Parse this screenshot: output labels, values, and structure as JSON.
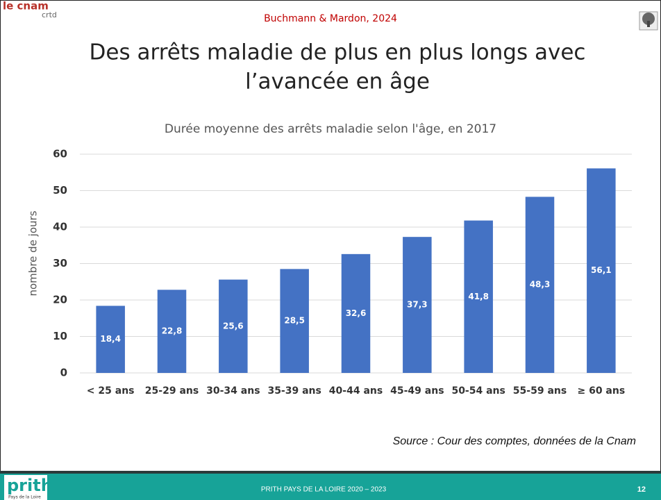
{
  "header": {
    "logo": "le cnam",
    "logo_sub": "crtd",
    "credit": "Buchmann & Mardon, 2024"
  },
  "slide_title": [
    "Des arrêts maladie de plus en plus longs avec",
    "l’avancée en âge"
  ],
  "chart_data": {
    "type": "bar",
    "title": "Durée moyenne des arrêts maladie selon l'âge, en 2017",
    "y_label": "nombre de jours",
    "categories": [
      "< 25 ans",
      "25-29 ans",
      "30-34 ans",
      "35-39 ans",
      "40-44 ans",
      "45-49 ans",
      "50-54 ans",
      "55-59 ans",
      "≥ 60 ans"
    ],
    "values": [
      18.4,
      22.8,
      25.6,
      28.5,
      32.6,
      37.3,
      41.8,
      48.3,
      56.1
    ],
    "value_labels": [
      "18,4",
      "22,8",
      "25,6",
      "28,5",
      "32,6",
      "37,3",
      "41,8",
      "48,3",
      "56,1"
    ],
    "color": "#4472c4",
    "ylim": [
      0,
      60
    ],
    "yticks": [
      0,
      10,
      20,
      30,
      40,
      50,
      60
    ],
    "grid": true
  },
  "source": "Source : Cour des comptes, données de la Cnam",
  "footer": {
    "logo": "prith",
    "logo_sub": "Pays de la Loire",
    "text": "PRITH PAYS DE LA LOIRE 2020 – 2023",
    "page": "12"
  }
}
